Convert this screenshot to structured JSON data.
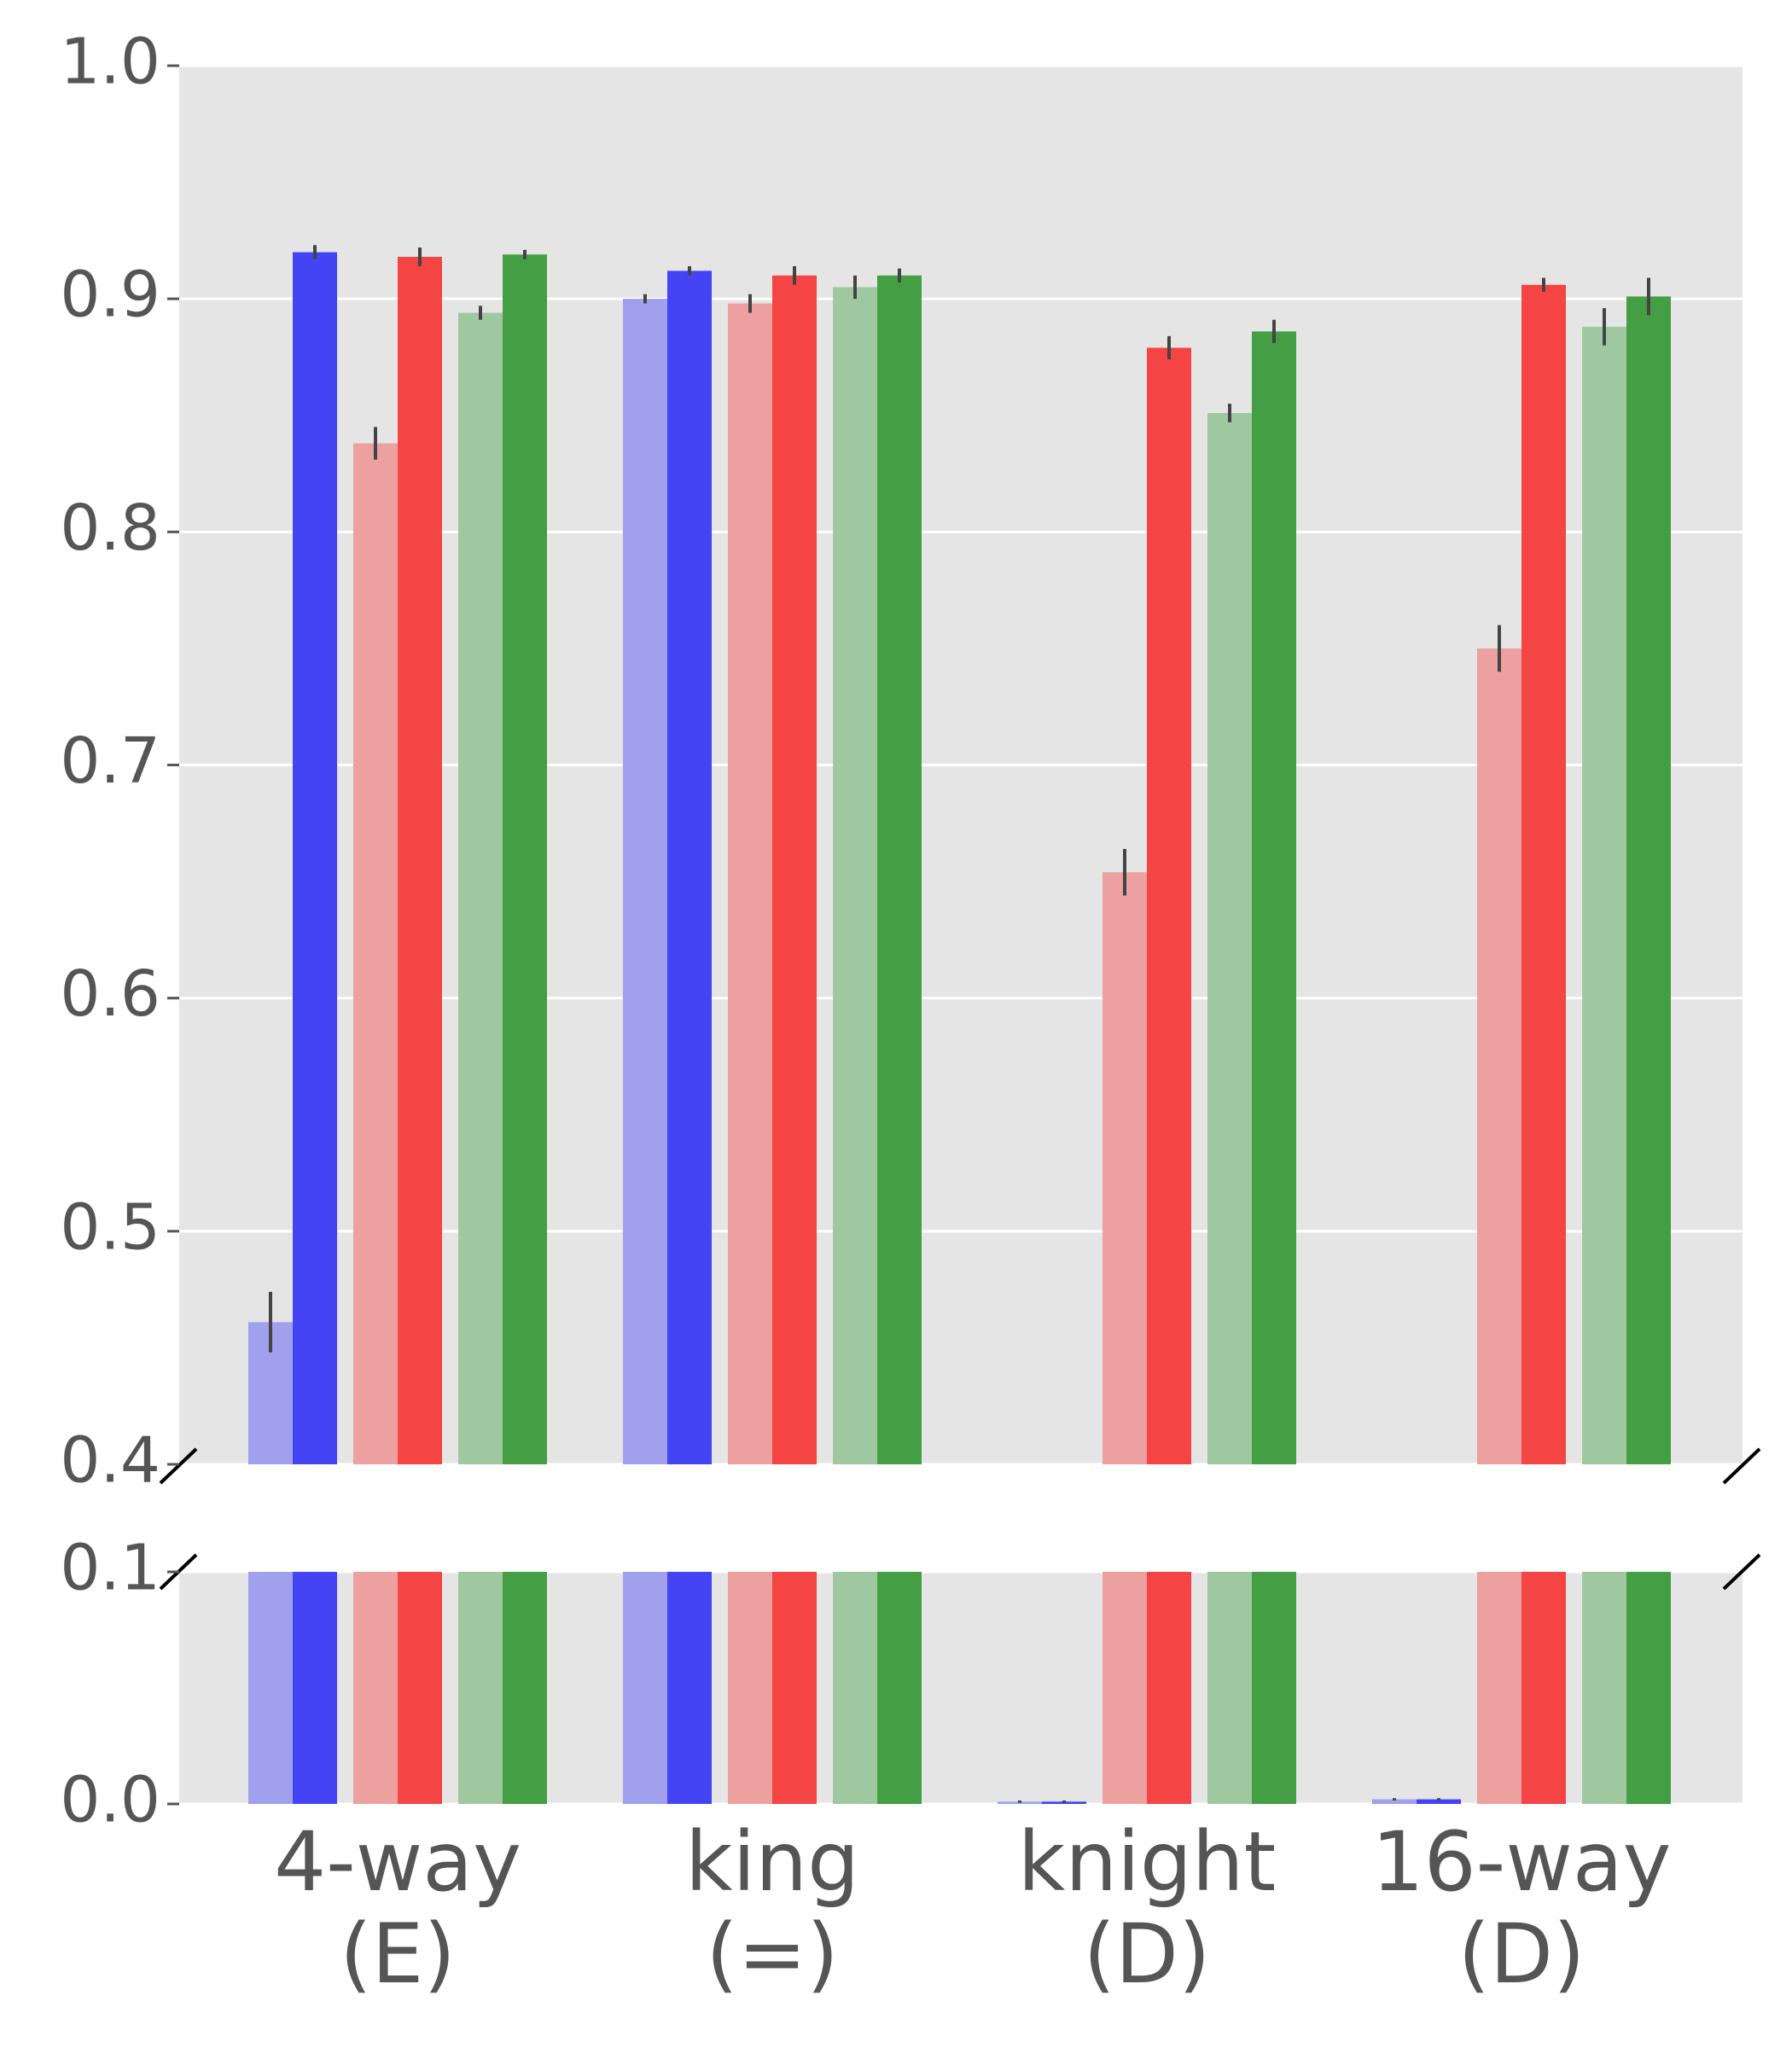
{
  "chart_data": {
    "type": "bar",
    "categories": [
      "4-way\n(E)",
      "king\n(=)",
      "knight\n(D)",
      "16-way\n(D)"
    ],
    "series": [
      {
        "color": "#a0a0ec",
        "values": [
          0.461,
          0.9,
          0.001,
          0.002
        ],
        "errors": [
          0.013,
          0.002,
          0.0005,
          0.0005
        ]
      },
      {
        "color": "#4444f5",
        "values": [
          0.92,
          0.912,
          0.001,
          0.002
        ],
        "errors": [
          0.003,
          0.002,
          0.0005,
          0.0005
        ]
      },
      {
        "color": "#eca0a0",
        "values": [
          0.838,
          0.898,
          0.654,
          0.75
        ],
        "errors": [
          0.007,
          0.004,
          0.01,
          0.01
        ]
      },
      {
        "color": "#f54444",
        "values": [
          0.918,
          0.91,
          0.879,
          0.906
        ],
        "errors": [
          0.004,
          0.004,
          0.005,
          0.003
        ]
      },
      {
        "color": "#a0c8a0",
        "values": [
          0.894,
          0.905,
          0.851,
          0.888
        ],
        "errors": [
          0.003,
          0.005,
          0.004,
          0.008
        ]
      },
      {
        "color": "#449f44",
        "values": [
          0.919,
          0.91,
          0.886,
          0.901
        ],
        "errors": [
          0.002,
          0.003,
          0.005,
          0.008
        ]
      }
    ],
    "ylim": [
      0.4,
      1.0
    ],
    "yticks": [
      0.4,
      0.5,
      0.6,
      0.7,
      0.8,
      0.9,
      {
        "value": 1.0,
        "label": "1.0"
      }
    ],
    "y2lim": [
      0,
      0.1
    ],
    "y2ticks": [
      {
        "value": 0,
        "label": "0.0"
      },
      0.1
    ],
    "grid": true
  }
}
